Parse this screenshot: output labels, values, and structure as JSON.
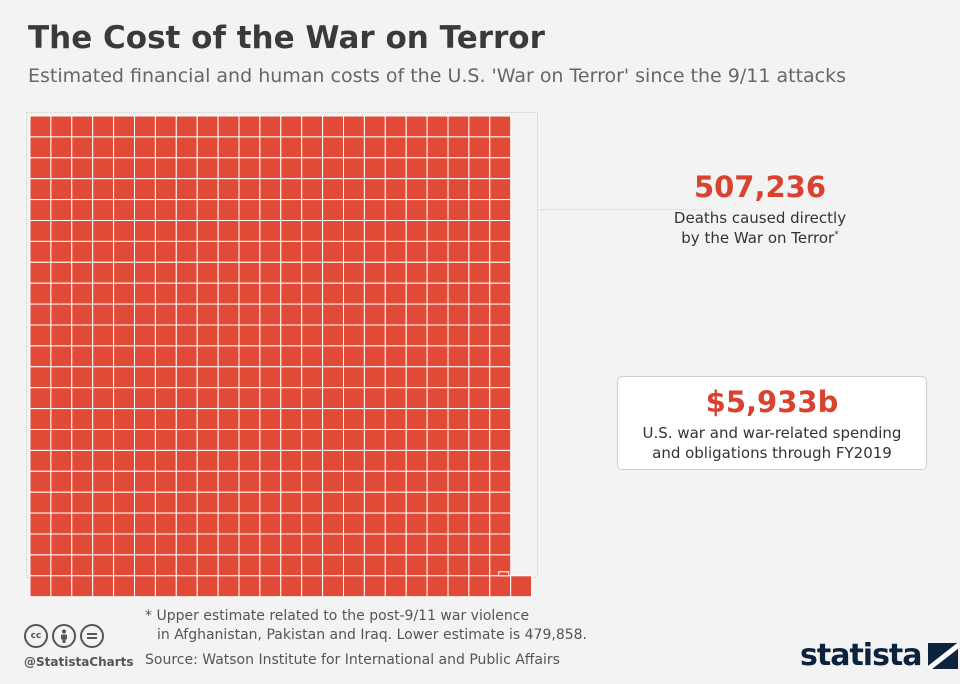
{
  "header": {
    "title": "The Cost of the War on Terror",
    "subtitle": "Estimated financial and human costs of the U.S. 'War on Terror' since the 9/11 attacks"
  },
  "stats": {
    "deaths": {
      "value": "507,236",
      "label_line1": "Deaths caused directly",
      "label_line2": "by the War on Terror",
      "marker": "*"
    },
    "spending": {
      "value": "$5,933b",
      "label_line1": "U.S. war and war-related spending",
      "label_line2": "and obligations through FY2019"
    }
  },
  "footer": {
    "footnote_line1": "* Upper estimate related to the post-9/11 war violence",
    "footnote_line2": "in Afghanistan, Pakistan and Iraq. Lower estimate is 479,858.",
    "source": "Source: Watson Institute for International and Public Affairs",
    "handle": "@StatistaCharts",
    "brand": "statista",
    "cc_icons": [
      "cc-icon",
      "by-icon",
      "nd-icon"
    ]
  },
  "chart_data": {
    "type": "waffle",
    "series": [
      {
        "name": "Deaths caused directly by the War on Terror",
        "value": 507236
      },
      {
        "name": "U.S. war and war-related spending and obligations through FY2019",
        "value": 5933,
        "unit": "$b"
      }
    ],
    "colors": {
      "squares": "#e04a36",
      "grid_lines": "#ffffff"
    }
  }
}
